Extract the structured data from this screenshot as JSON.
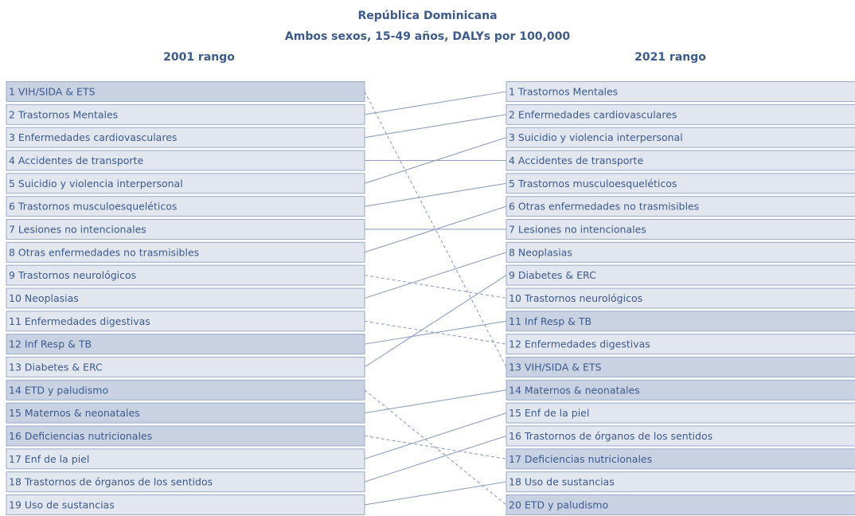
{
  "title": "República Dominicana",
  "subtitle": "Ambos sexos, 15-49 años, DALYs por 100,000",
  "left": {
    "heading": "2001 rango",
    "items": [
      {
        "label": "1 VIH/SIDA & ETS",
        "color": "#c9d2e3"
      },
      {
        "label": "2 Trastornos Mentales",
        "color": "#e1e6ef"
      },
      {
        "label": "3 Enfermedades cardiovasculares",
        "color": "#e1e6ef"
      },
      {
        "label": "4 Accidentes de transporte",
        "color": "#e1e6ef"
      },
      {
        "label": "5 Suicidio y violencia interpersonal",
        "color": "#e1e6ef"
      },
      {
        "label": "6 Trastornos musculoesqueléticos",
        "color": "#e1e6ef"
      },
      {
        "label": "7 Lesiones no intencionales",
        "color": "#e1e6ef"
      },
      {
        "label": "8 Otras enfermedades no trasmisibles",
        "color": "#e1e6ef"
      },
      {
        "label": "9 Trastornos neurológicos",
        "color": "#e1e6ef"
      },
      {
        "label": "10 Neoplasias",
        "color": "#e1e6ef"
      },
      {
        "label": "11 Enfermedades digestivas",
        "color": "#e1e6ef"
      },
      {
        "label": "12 Inf Resp & TB",
        "color": "#c9d2e3"
      },
      {
        "label": "13 Diabetes & ERC",
        "color": "#e1e6ef"
      },
      {
        "label": "14 ETD y paludismo",
        "color": "#c9d2e3"
      },
      {
        "label": "15 Maternos & neonatales",
        "color": "#c9d2e3"
      },
      {
        "label": "16 Deficiencias nutricionales",
        "color": "#c9d2e3"
      },
      {
        "label": "17 Enf de la piel",
        "color": "#e1e6ef"
      },
      {
        "label": "18 Trastornos de órganos de los sentidos",
        "color": "#e1e6ef"
      },
      {
        "label": "19 Uso de sustancias",
        "color": "#e1e6ef"
      }
    ]
  },
  "right": {
    "heading": "2021 rango",
    "items": [
      {
        "label": "1 Trastornos Mentales",
        "color": "#e1e6ef"
      },
      {
        "label": "2 Enfermedades cardiovasculares",
        "color": "#e1e6ef"
      },
      {
        "label": "3 Suicidio y violencia interpersonal",
        "color": "#e1e6ef"
      },
      {
        "label": "4 Accidentes de transporte",
        "color": "#e1e6ef"
      },
      {
        "label": "5 Trastornos musculoesqueléticos",
        "color": "#e1e6ef"
      },
      {
        "label": "6 Otras enfermedades no trasmisibles",
        "color": "#e1e6ef"
      },
      {
        "label": "7 Lesiones no intencionales",
        "color": "#e1e6ef"
      },
      {
        "label": "8 Neoplasias",
        "color": "#e1e6ef"
      },
      {
        "label": "9 Diabetes & ERC",
        "color": "#e1e6ef"
      },
      {
        "label": "10 Trastornos neurológicos",
        "color": "#e1e6ef"
      },
      {
        "label": "11 Inf Resp & TB",
        "color": "#c9d2e3"
      },
      {
        "label": "12 Enfermedades digestivas",
        "color": "#e1e6ef"
      },
      {
        "label": "13 VIH/SIDA & ETS",
        "color": "#c9d2e3"
      },
      {
        "label": "14 Maternos & neonatales",
        "color": "#c9d2e3"
      },
      {
        "label": "15 Enf de la piel",
        "color": "#e1e6ef"
      },
      {
        "label": "16 Trastornos de órganos de los sentidos",
        "color": "#e1e6ef"
      },
      {
        "label": "17 Deficiencias nutricionales",
        "color": "#c9d2e3"
      },
      {
        "label": "18 Uso de sustancias",
        "color": "#e1e6ef"
      },
      {
        "label": "20 ETD y paludismo",
        "color": "#c9d2e3"
      }
    ]
  }
}
